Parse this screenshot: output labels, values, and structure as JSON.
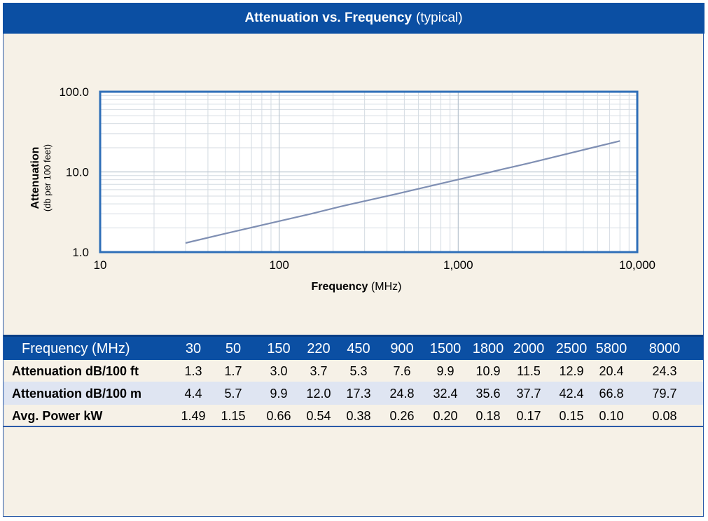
{
  "title": {
    "main": "Attenuation vs. Frequency",
    "sub": "(typical)"
  },
  "chart_data": {
    "type": "line",
    "title": "Attenuation vs. Frequency (typical)",
    "xlabel": {
      "bold": "Frequency",
      "rest": "(MHz)"
    },
    "ylabel": {
      "main": "Attenuation",
      "sub": "(db per 100 feet)"
    },
    "x_scale": "log",
    "y_scale": "log",
    "xlim": [
      10,
      10000
    ],
    "ylim": [
      1,
      100
    ],
    "x_ticks": [
      {
        "value": 10,
        "label": "10"
      },
      {
        "value": 100,
        "label": "100"
      },
      {
        "value": 1000,
        "label": "1,000"
      },
      {
        "value": 10000,
        "label": "10,000"
      }
    ],
    "y_ticks": [
      {
        "value": 1,
        "label": "1.0"
      },
      {
        "value": 10,
        "label": "10.0"
      },
      {
        "value": 100,
        "label": "100.0"
      }
    ],
    "grid": true,
    "series": [
      {
        "x": [
          30,
          50,
          150,
          220,
          450,
          900,
          1500,
          1800,
          2000,
          2500,
          5800,
          8000
        ],
        "y": [
          1.3,
          1.7,
          3.0,
          3.7,
          5.3,
          7.6,
          9.9,
          10.9,
          11.5,
          12.9,
          20.4,
          24.3
        ]
      }
    ],
    "colors": {
      "line": "#7f8fb3",
      "plot_border": "#2f6fb8",
      "grid": "#d4dbe2"
    }
  },
  "table": {
    "header_label": "Frequency (MHz)",
    "frequencies": [
      "30",
      "50",
      "150",
      "220",
      "450",
      "900",
      "1500",
      "1800",
      "2000",
      "2500",
      "5800",
      "8000"
    ],
    "rows": [
      {
        "label": "Attenuation dB/100 ft",
        "values": [
          "1.3",
          "1.7",
          "3.0",
          "3.7",
          "5.3",
          "7.6",
          "9.9",
          "10.9",
          "11.5",
          "12.9",
          "20.4",
          "24.3"
        ]
      },
      {
        "label": "Attenuation dB/100 m",
        "values": [
          "4.4",
          "5.7",
          "9.9",
          "12.0",
          "17.3",
          "24.8",
          "32.4",
          "35.6",
          "37.7",
          "42.4",
          "66.8",
          "79.7"
        ]
      },
      {
        "label": "Avg. Power kW",
        "values": [
          "1.49",
          "1.15",
          "0.66",
          "0.54",
          "0.38",
          "0.26",
          "0.20",
          "0.18",
          "0.17",
          "0.15",
          "0.10",
          "0.08"
        ]
      }
    ]
  },
  "colors": {
    "title_bar": "#0b4fa3",
    "panel_bg": "#f6f1e7",
    "alt_row": "#dfe5f2"
  }
}
